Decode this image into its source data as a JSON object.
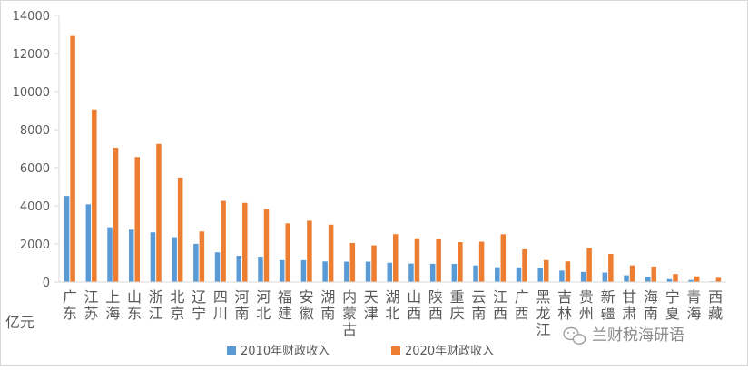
{
  "chart_data": {
    "type": "bar",
    "ylabel": "亿元",
    "ylim": [
      0,
      14000
    ],
    "yticks": [
      0,
      2000,
      4000,
      6000,
      8000,
      10000,
      12000,
      14000
    ],
    "grid": false,
    "legend_position": "bottom-center",
    "categories": [
      "广东",
      "江苏",
      "上海",
      "山东",
      "浙江",
      "北京",
      "辽宁",
      "四川",
      "河南",
      "河北",
      "福建",
      "安徽",
      "湖南",
      "内蒙古",
      "天津",
      "湖北",
      "山西",
      "陕西",
      "重庆",
      "云南",
      "江西",
      "广西",
      "黑龙江",
      "吉林",
      "贵州",
      "新疆",
      "甘肃",
      "海南",
      "宁夏",
      "青海",
      "西藏"
    ],
    "series": [
      {
        "name": "2010年财政收入",
        "color": "#5b9bd5",
        "values": [
          4517,
          4080,
          2874,
          2749,
          2608,
          2354,
          2004,
          1561,
          1381,
          1331,
          1151,
          1149,
          1081,
          1070,
          1068,
          1011,
          970,
          958,
          952,
          871,
          778,
          772,
          755,
          602,
          534,
          501,
          354,
          271,
          154,
          110,
          37
        ]
      },
      {
        "name": "2020年财政收入",
        "color": "#ed7d31",
        "values": [
          12922,
          9059,
          7046,
          6560,
          7248,
          5484,
          2655,
          4258,
          4155,
          3826,
          3079,
          3216,
          3009,
          2051,
          1923,
          2512,
          2296,
          2257,
          2095,
          2117,
          2508,
          1717,
          1153,
          1085,
          1786,
          1477,
          874,
          816,
          419,
          298,
          221
        ]
      }
    ]
  },
  "watermark": "兰财税海研语",
  "colors": {
    "axis": "#d9d9d9",
    "text": "#595959"
  }
}
